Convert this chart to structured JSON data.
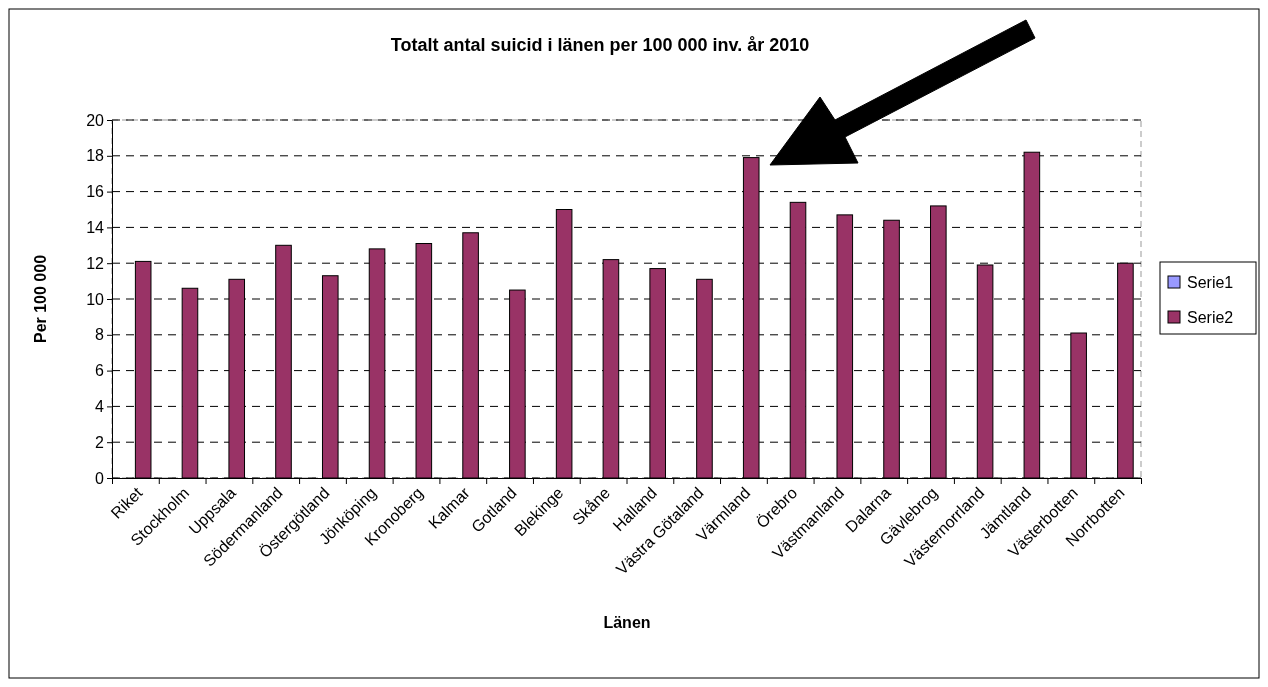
{
  "chart_data": {
    "type": "bar",
    "title": "Totalt antal suicid i länen per 100 000 inv. år 2010",
    "xlabel": "Länen",
    "ylabel": "Per 100 000",
    "categories": [
      "Riket",
      "Stockholm",
      "Uppsala",
      "Södermanland",
      "Östergötland",
      "Jönköping",
      "Kronoberg",
      "Kalmar",
      "Gotland",
      "Blekinge",
      "Skåne",
      "Halland",
      "Västra Götaland",
      "Värmland",
      "Örebro",
      "Västmanland",
      "Dalarna",
      "Gävlebrog",
      "Västernorrland",
      "Jämtland",
      "Västerbotten",
      "Norrbotten"
    ],
    "series": [
      {
        "name": "Serie1",
        "color": "#9999ff",
        "values": [
          null,
          null,
          null,
          null,
          null,
          null,
          null,
          null,
          null,
          null,
          null,
          null,
          null,
          null,
          null,
          null,
          null,
          null,
          null,
          null,
          null,
          null
        ]
      },
      {
        "name": "Serie2",
        "color": "#993366",
        "values": [
          12.1,
          10.6,
          11.1,
          13.0,
          11.3,
          12.8,
          13.1,
          13.7,
          10.5,
          15.0,
          12.2,
          11.7,
          11.1,
          17.9,
          15.4,
          14.7,
          14.4,
          15.2,
          11.9,
          18.2,
          8.1,
          12.0
        ]
      }
    ],
    "ylim": [
      0,
      20
    ],
    "yticks": [
      0,
      2,
      4,
      6,
      8,
      10,
      12,
      14,
      16,
      18,
      20
    ],
    "grid": "y",
    "legend": "right"
  }
}
